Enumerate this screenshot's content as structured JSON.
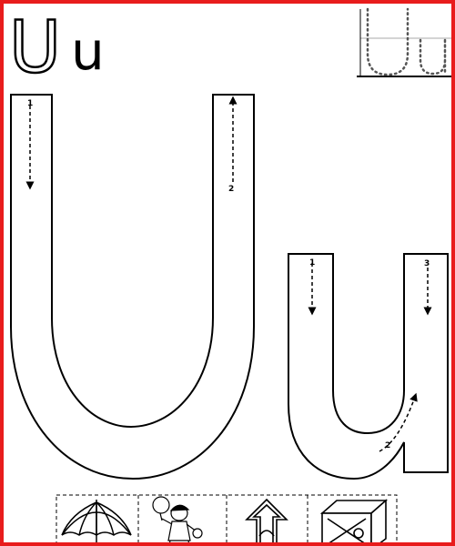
{
  "title": {
    "upper": "U",
    "lower": "u"
  },
  "step_numbers": {
    "upper_1": "1",
    "upper_2": "2",
    "lower_1": "1",
    "lower_2": "2",
    "lower_3": "3"
  },
  "icons": [
    "umbrella-icon",
    "boy-holding-sign-icon",
    "up-arrow-icon",
    "box-icon"
  ],
  "colors": {
    "border": "#e81c1c",
    "ink": "#000000"
  }
}
